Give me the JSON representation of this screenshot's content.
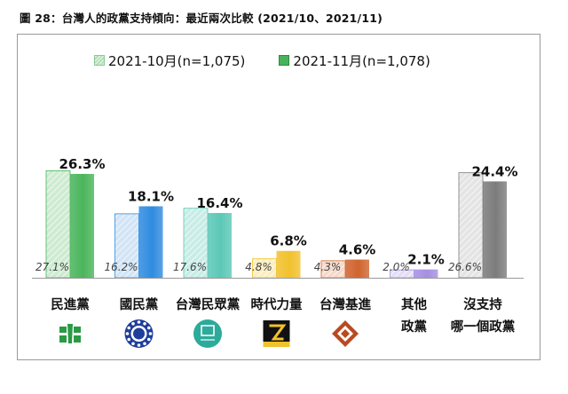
{
  "title": "圖 28：台灣人的政黨支持傾向：最近兩次比較 (2021/10、2021/11)",
  "colors": {
    "dpp_oct": "#cdebd0",
    "dpp_nov": "#4ab55c",
    "kmt_oct": "#d2e4f5",
    "kmt_nov": "#2f8ce0",
    "tpp_oct": "#c8ece6",
    "tpp_nov": "#5cc8b6",
    "npp_oct": "#faeec0",
    "npp_nov": "#f2c12e",
    "tsp_oct": "#f6d9c9",
    "tsp_nov": "#d0642e",
    "other_oct": "#e3ddf5",
    "other_nov": "#a58fe2",
    "none_oct": "#e4e4e4",
    "none_nov": "#7c7c7c"
  },
  "chart_data": {
    "type": "bar",
    "title": "圖 28：台灣人的政黨支持傾向：最近兩次比較 (2021/10、2021/11)",
    "categories": [
      "民進黨",
      "國民黨",
      "台灣民眾黨",
      "時代力量",
      "台灣基進",
      "其他政黨",
      "沒支持哪一個政黨"
    ],
    "category_lines": [
      [
        "民進黨"
      ],
      [
        "國民黨"
      ],
      [
        "台灣民眾黨"
      ],
      [
        "時代力量"
      ],
      [
        "台灣基進"
      ],
      [
        "其他",
        "政黨"
      ],
      [
        "沒支持",
        "哪一個政黨"
      ]
    ],
    "category_icons": [
      "dpp-logo-icon",
      "kmt-logo-icon",
      "tpp-logo-icon",
      "npp-logo-icon",
      "tsp-logo-icon",
      "",
      ""
    ],
    "series": [
      {
        "name": "2021-10月(n=1,075)",
        "values": [
          27.1,
          16.2,
          17.6,
          4.8,
          4.3,
          2.0,
          26.6
        ],
        "labels": [
          "27.1%",
          "16.2%",
          "17.6%",
          "4.8%",
          "4.3%",
          "2.0%",
          "26.6%"
        ]
      },
      {
        "name": "2021-11月(n=1,078)",
        "values": [
          26.3,
          18.1,
          16.4,
          6.8,
          4.6,
          2.1,
          24.4
        ],
        "labels": [
          "26.3%",
          "18.1%",
          "16.4%",
          "6.8%",
          "4.6%",
          "2.1%",
          "24.4%"
        ]
      }
    ],
    "ylim": [
      0,
      30
    ],
    "grid": false,
    "legend": "top"
  }
}
